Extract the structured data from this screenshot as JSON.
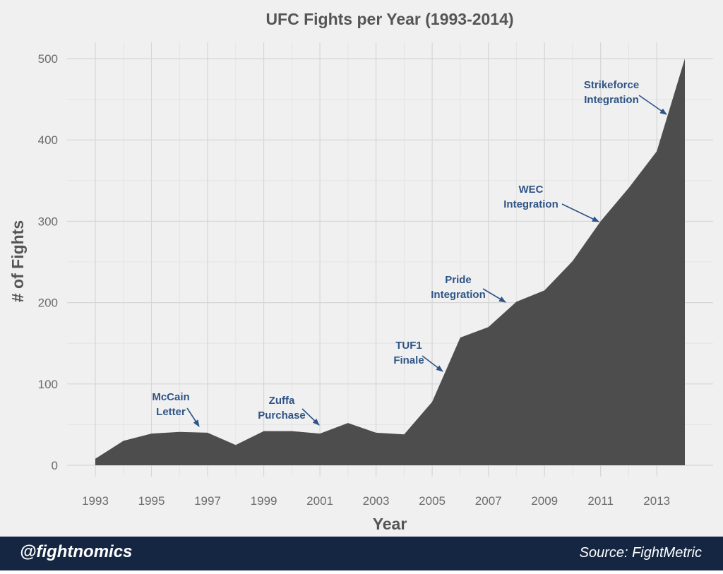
{
  "chart_data": {
    "type": "area",
    "title": "UFC Fights per Year (1993-2014)",
    "xlabel": "Year",
    "ylabel": "# of Fights",
    "x": [
      1993,
      1994,
      1995,
      1996,
      1997,
      1998,
      1999,
      2000,
      2001,
      2002,
      2003,
      2004,
      2005,
      2006,
      2007,
      2008,
      2009,
      2010,
      2011,
      2012,
      2013,
      2014
    ],
    "y": [
      8,
      30,
      39,
      41,
      40,
      25,
      42,
      42,
      39,
      52,
      40,
      38,
      78,
      157,
      170,
      201,
      215,
      251,
      300,
      341,
      386,
      500
    ],
    "xlim": [
      1993,
      2014
    ],
    "ylim": [
      0,
      500
    ],
    "x_ticks": [
      "1993",
      "1995",
      "1997",
      "1999",
      "2001",
      "2003",
      "2005",
      "2007",
      "2009",
      "2011",
      "2013"
    ],
    "y_ticks": [
      "0",
      "100",
      "200",
      "300",
      "400",
      "500"
    ],
    "grid": true,
    "legend": "none",
    "fill_color": "#4d4d4d",
    "annotations": [
      {
        "lines": [
          "McCain",
          "Letter"
        ],
        "target_year": 1996.8
      },
      {
        "lines": [
          "Zuffa",
          "Purchase"
        ],
        "target_year": 2000.9
      },
      {
        "lines": [
          "TUF1",
          "Finale"
        ],
        "target_year": 2005.4
      },
      {
        "lines": [
          "Pride",
          "Integration"
        ],
        "target_year": 2007.7
      },
      {
        "lines": [
          "WEC",
          "Integration"
        ],
        "target_year": 2010.9
      },
      {
        "lines": [
          "Strikeforce",
          "Integration"
        ],
        "target_year": 2013.3
      }
    ],
    "annotation_color": "#2f5485"
  },
  "footer": {
    "handle": "@fightnomics",
    "source": "Source: FightMetric"
  }
}
